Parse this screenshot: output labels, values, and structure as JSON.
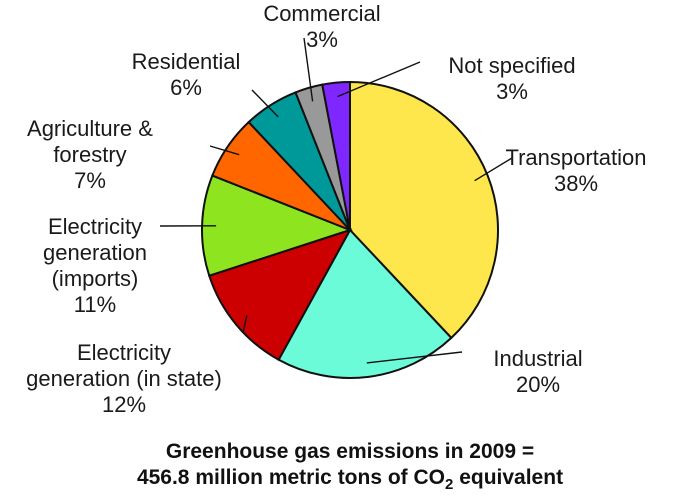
{
  "chart_data": {
    "type": "pie",
    "slices": [
      {
        "label_lines": [
          "Transportation"
        ],
        "pct_text": "38%",
        "value": 38,
        "color": "#fde74c"
      },
      {
        "label_lines": [
          "Industrial"
        ],
        "pct_text": "20%",
        "value": 20,
        "color": "#6bfbd8"
      },
      {
        "label_lines": [
          "Electricity",
          "generation (in state)"
        ],
        "pct_text": "12%",
        "value": 12,
        "color": "#cc0000"
      },
      {
        "label_lines": [
          "Electricity",
          "generation",
          "(imports)"
        ],
        "pct_text": "11%",
        "value": 11,
        "color": "#8ee51f"
      },
      {
        "label_lines": [
          "Agriculture &",
          "forestry"
        ],
        "pct_text": "7%",
        "value": 7,
        "color": "#ff6600"
      },
      {
        "label_lines": [
          "Residential"
        ],
        "pct_text": "6%",
        "value": 6,
        "color": "#009999"
      },
      {
        "label_lines": [
          "Commercial"
        ],
        "pct_text": "3%",
        "value": 3,
        "color": "#999999"
      },
      {
        "label_lines": [
          "Not specified"
        ],
        "pct_text": "3%",
        "value": 3,
        "color": "#7f27ff"
      }
    ]
  },
  "caption": {
    "line1": "Greenhouse gas emissions in 2009 =",
    "line2_pre": "456.8 million metric tons of CO",
    "line2_sub": "2",
    "line2_post": " equivalent"
  }
}
